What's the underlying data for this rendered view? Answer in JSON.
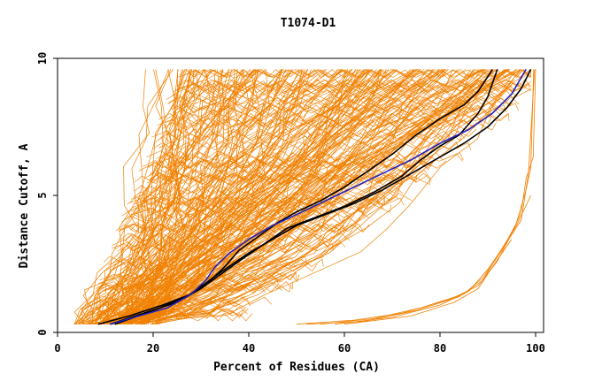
{
  "chart_data": {
    "type": "line",
    "title": "T1074-D1",
    "xlabel": "Percent of Residues (CA)",
    "ylabel": "Distance Cutoff, A",
    "xlim": [
      0,
      100
    ],
    "ylim": [
      0,
      10
    ],
    "xticks": [
      0,
      20,
      40,
      60,
      80,
      100
    ],
    "yticks": [
      0,
      5,
      10
    ],
    "grid": false,
    "legend": "none",
    "colors": {
      "orange": "#f08000",
      "black": "#000000",
      "blue": "#2020c0"
    },
    "highlight_series": [
      {
        "color": "black",
        "points": [
          [
            8.5,
            0.3
          ],
          [
            15,
            0.6
          ],
          [
            22,
            1.0
          ],
          [
            28,
            1.4
          ],
          [
            32,
            1.9
          ],
          [
            35,
            2.4
          ],
          [
            38,
            3.0
          ],
          [
            42,
            3.5
          ],
          [
            46,
            4.0
          ],
          [
            50,
            4.4
          ],
          [
            55,
            4.8
          ],
          [
            60,
            5.3
          ],
          [
            65,
            5.9
          ],
          [
            70,
            6.5
          ],
          [
            75,
            7.2
          ],
          [
            80,
            7.8
          ],
          [
            85,
            8.3
          ],
          [
            88,
            8.8
          ],
          [
            91,
            9.6
          ]
        ]
      },
      {
        "color": "black",
        "points": [
          [
            11,
            0.3
          ],
          [
            18,
            0.7
          ],
          [
            25,
            1.1
          ],
          [
            30,
            1.6
          ],
          [
            34,
            2.1
          ],
          [
            38,
            2.6
          ],
          [
            43,
            3.2
          ],
          [
            48,
            3.8
          ],
          [
            54,
            4.2
          ],
          [
            60,
            4.6
          ],
          [
            66,
            5.1
          ],
          [
            72,
            5.7
          ],
          [
            76,
            6.3
          ],
          [
            80,
            6.8
          ],
          [
            84,
            7.2
          ],
          [
            86,
            7.6
          ],
          [
            88,
            8.0
          ],
          [
            90,
            8.6
          ],
          [
            92,
            9.6
          ]
        ]
      },
      {
        "color": "black",
        "points": [
          [
            12,
            0.3
          ],
          [
            20,
            0.8
          ],
          [
            27,
            1.3
          ],
          [
            31,
            1.8
          ],
          [
            35,
            2.3
          ],
          [
            40,
            2.9
          ],
          [
            45,
            3.4
          ],
          [
            50,
            3.9
          ],
          [
            56,
            4.3
          ],
          [
            62,
            4.7
          ],
          [
            68,
            5.2
          ],
          [
            74,
            5.8
          ],
          [
            80,
            6.4
          ],
          [
            85,
            6.9
          ],
          [
            90,
            7.5
          ],
          [
            94,
            8.2
          ],
          [
            97,
            8.9
          ],
          [
            99,
            9.6
          ]
        ]
      },
      {
        "color": "blue",
        "points": [
          [
            11,
            0.3
          ],
          [
            17,
            0.6
          ],
          [
            23,
            0.9
          ],
          [
            28,
            1.4
          ],
          [
            31,
            1.9
          ],
          [
            33,
            2.4
          ],
          [
            36,
            2.9
          ],
          [
            40,
            3.4
          ],
          [
            45,
            3.9
          ],
          [
            50,
            4.3
          ],
          [
            56,
            4.8
          ],
          [
            62,
            5.3
          ],
          [
            68,
            5.8
          ],
          [
            74,
            6.3
          ],
          [
            80,
            6.9
          ],
          [
            86,
            7.4
          ],
          [
            91,
            8.0
          ],
          [
            95,
            8.7
          ],
          [
            98,
            9.6
          ]
        ]
      }
    ]
  }
}
